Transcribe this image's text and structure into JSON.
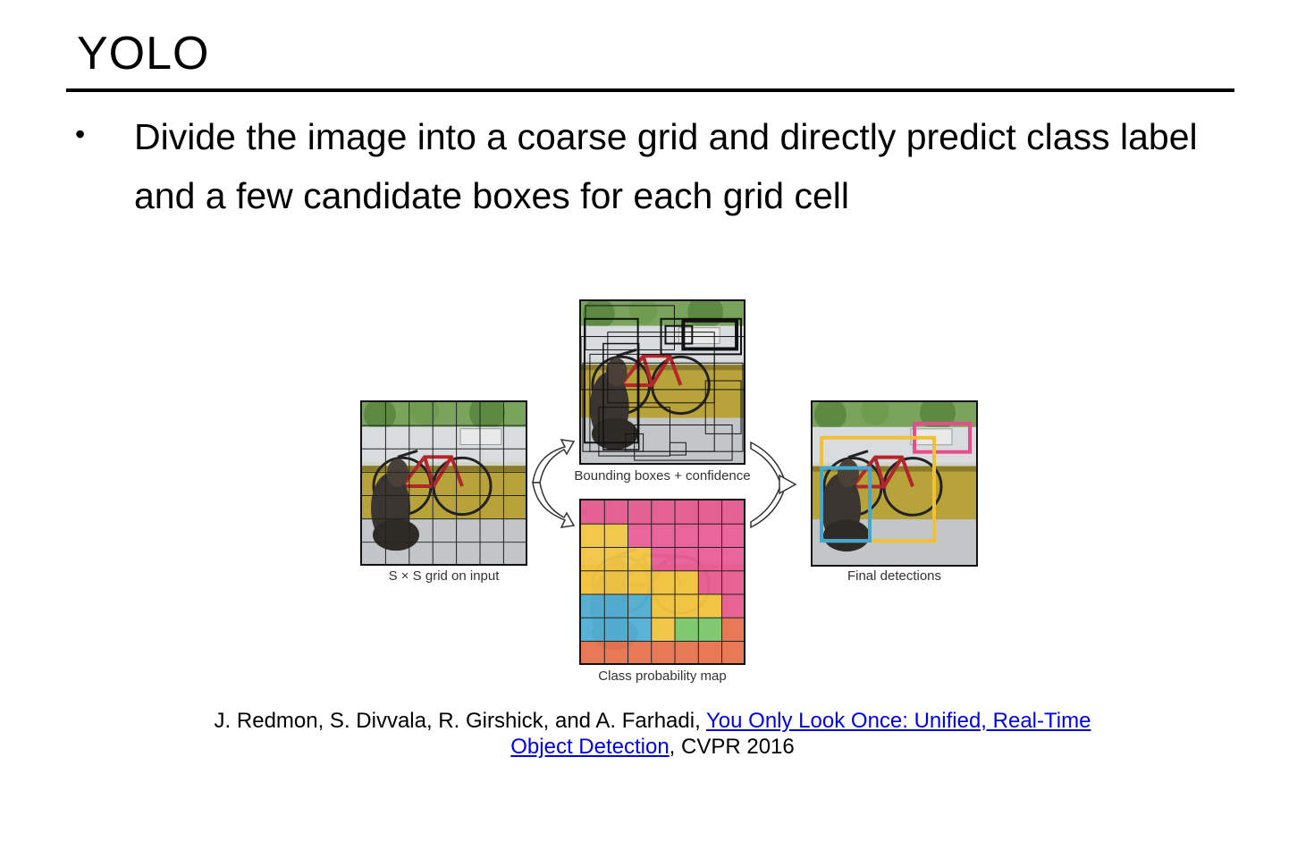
{
  "slide": {
    "title": "YOLO",
    "bullet_symbol": "•",
    "bullet_text": "Divide the image into a coarse grid and directly predict class label and a few candidate boxes for each grid cell"
  },
  "figure": {
    "captions": {
      "grid": "S × S grid on input",
      "boxes": "Bounding boxes + confidence",
      "classmap": "Class probability map",
      "final": "Final detections"
    },
    "colors": {
      "dog_class": "#3fa9d4",
      "bicycle_class": "#f2c12e",
      "car_class": "#e84c8b",
      "dining_table_class": "#e8653c",
      "other_class": "#6fc35a"
    }
  },
  "citation": {
    "authors": "J. Redmon, S. Divvala, R. Girshick, and A. Farhadi, ",
    "link_text_line1": "You Only Look Once: Unified, Real-Time ",
    "link_text_line2": "Object Detection",
    "venue": ", CVPR 2016"
  }
}
